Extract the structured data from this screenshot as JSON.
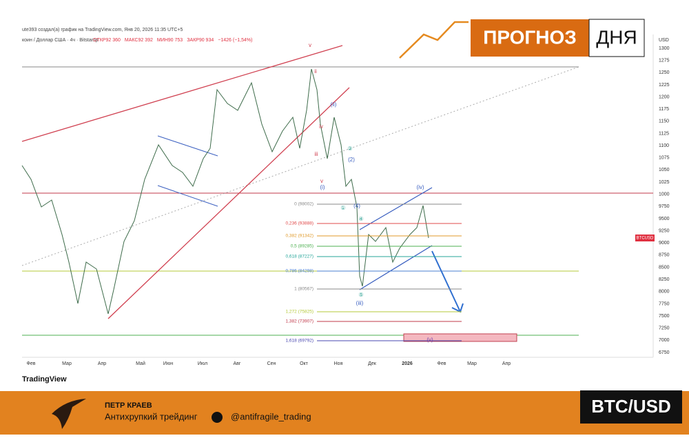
{
  "header": {
    "attribution": "ute393 создал(а) график на TradingView.com, Янв 20, 2026 11:35 UTC+5",
    "symbol": "коин / Доллар США · 4ч · Bitstamp",
    "ohlc": [
      "ОТКР92 360",
      "МАКС92 392",
      "МИН90 753",
      "ЗАКР90 934",
      "−1426 (−1,54%)"
    ]
  },
  "banner": {
    "word1": "ПРОГНОЗ",
    "word2": "ДНЯ"
  },
  "price_axis": {
    "unit": "USD",
    "ticks": [
      "1300",
      "1275",
      "1250",
      "1225",
      "1200",
      "1175",
      "1150",
      "1125",
      "1100",
      "1075",
      "1050",
      "1025",
      "1000",
      "9750",
      "9500",
      "9250",
      "9000",
      "8750",
      "8500",
      "8250",
      "8000",
      "7750",
      "7500",
      "7250",
      "7000",
      "6750"
    ],
    "symbol_tag": "BTCUSD"
  },
  "time_axis": [
    "Фев",
    "Мар",
    "Апр",
    "Май",
    "Июн",
    "Июл",
    "Авг",
    "Сен",
    "Окт",
    "Ноя",
    "Дек",
    "2026",
    "Фев",
    "Мар",
    "Апр"
  ],
  "fib_levels": [
    {
      "label": "0 (98002)",
      "color": "#888888"
    },
    {
      "label": "0,236 (93888)",
      "color": "#e04848"
    },
    {
      "label": "0,382 (91342)",
      "color": "#e09a2a"
    },
    {
      "label": "0,5 (89285)",
      "color": "#4caf50"
    },
    {
      "label": "0,618 (87227)",
      "color": "#26a69a"
    },
    {
      "label": "0,786 (84298)",
      "color": "#4a7fd0"
    },
    {
      "label": "1 (80567)",
      "color": "#888888"
    },
    {
      "label": "1,272 (75825)",
      "color": "#b5c93a"
    },
    {
      "label": "1,382 (73907)",
      "color": "#c0394a"
    },
    {
      "label": "1,618 (69792)",
      "color": "#4a48b0"
    }
  ],
  "wave_labels": [
    "v",
    "ii",
    "iv",
    "iii",
    "v",
    "(ii)",
    "(i)",
    "(iii)",
    "(iv)",
    "(v)",
    "①",
    "②",
    "④",
    "⑤",
    "(2)",
    "(4)"
  ],
  "logo": "TradingView",
  "footer": {
    "name": "ПЕТР КРАЕВ",
    "tagline": "Антихрупкий трейдинг",
    "handle": "@antifragile_trading",
    "pair": "BTC/USD"
  }
}
